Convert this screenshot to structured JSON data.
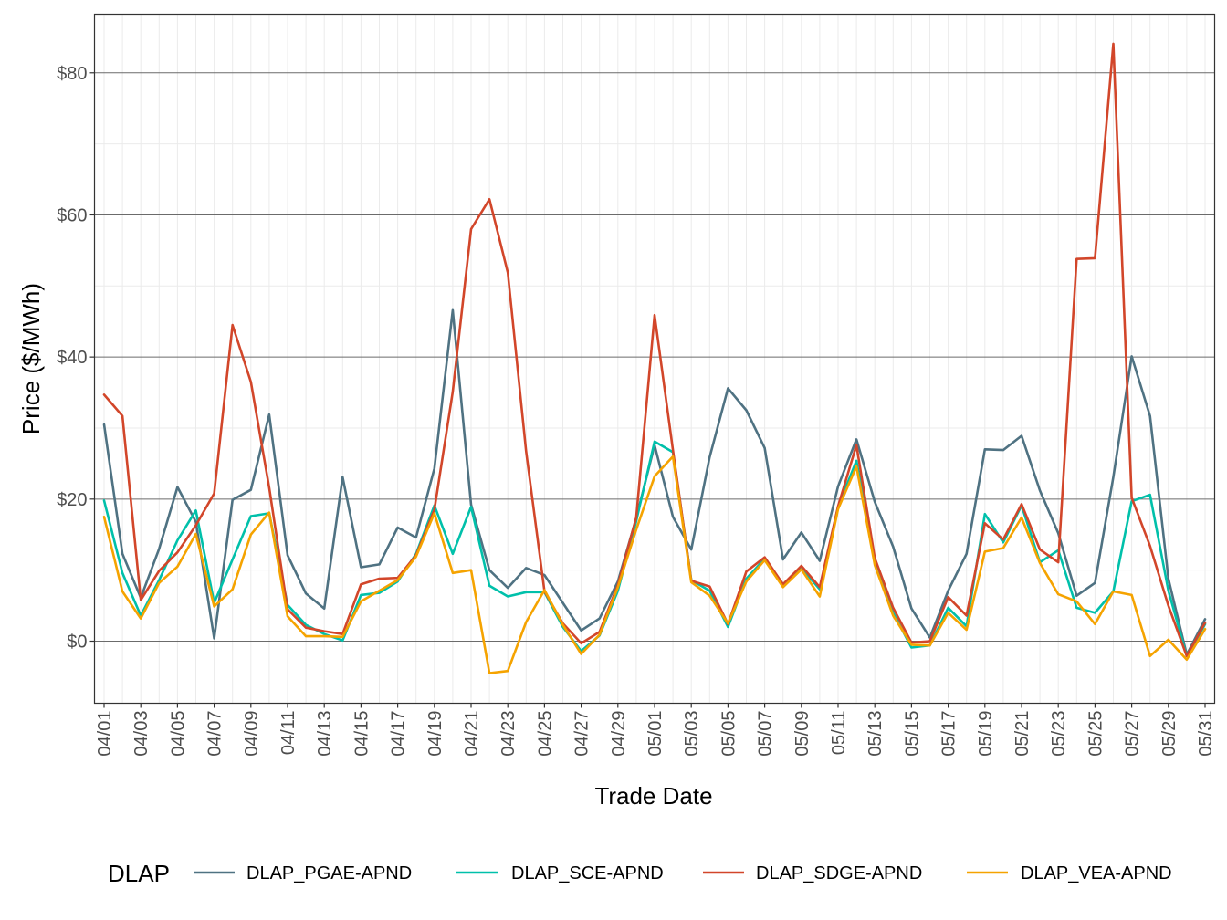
{
  "chart_data": {
    "type": "line",
    "xlabel": "Trade Date",
    "ylabel": "Price ($/MWh)",
    "ylim": [
      -9,
      88
    ],
    "y_ticks": [
      0,
      20,
      40,
      60,
      80
    ],
    "y_tick_labels": [
      "$0",
      "$20",
      "$40",
      "$60",
      "$80"
    ],
    "grid": true,
    "legend_title": "DLAP",
    "legend_position": "bottom",
    "categories": [
      "04/01",
      "04/02",
      "04/03",
      "04/04",
      "04/05",
      "04/06",
      "04/07",
      "04/08",
      "04/09",
      "04/10",
      "04/11",
      "04/12",
      "04/13",
      "04/14",
      "04/15",
      "04/16",
      "04/17",
      "04/18",
      "04/19",
      "04/20",
      "04/21",
      "04/22",
      "04/23",
      "04/24",
      "04/25",
      "04/26",
      "04/27",
      "04/28",
      "04/29",
      "04/30",
      "05/01",
      "05/02",
      "05/03",
      "05/04",
      "05/05",
      "05/06",
      "05/07",
      "05/08",
      "05/09",
      "05/10",
      "05/11",
      "05/12",
      "05/13",
      "05/14",
      "05/15",
      "05/16",
      "05/17",
      "05/18",
      "05/19",
      "05/20",
      "05/21",
      "05/22",
      "05/23",
      "05/24",
      "05/25",
      "05/26",
      "05/27",
      "05/28",
      "05/29",
      "05/30",
      "05/31"
    ],
    "x_tick_labels": [
      "04/01",
      "04/03",
      "04/05",
      "04/07",
      "04/09",
      "04/11",
      "04/13",
      "04/15",
      "04/17",
      "04/19",
      "04/21",
      "04/23",
      "04/25",
      "04/27",
      "04/29",
      "05/01",
      "05/03",
      "05/05",
      "05/07",
      "05/09",
      "05/11",
      "05/13",
      "05/15",
      "05/17",
      "05/19",
      "05/21",
      "05/23",
      "05/25",
      "05/27",
      "05/29",
      "05/31"
    ],
    "series": [
      {
        "name": "DLAP_PGAE-APND",
        "color": "#4f7282",
        "values": [
          30.5,
          12.3,
          6.1,
          13.0,
          21.7,
          16.8,
          0.4,
          19.9,
          21.3,
          31.9,
          12.1,
          6.7,
          4.6,
          23.1,
          10.4,
          10.8,
          16.0,
          14.6,
          24.3,
          46.6,
          19.2,
          10.0,
          7.5,
          10.3,
          9.3,
          5.4,
          1.5,
          3.2,
          8.4,
          17.3,
          27.6,
          17.5,
          12.9,
          25.9,
          35.6,
          32.5,
          27.2,
          11.5,
          15.3,
          11.3,
          21.8,
          28.4,
          19.6,
          13.3,
          4.6,
          0.5,
          7.1,
          12.3,
          27.0,
          26.9,
          28.9,
          21.2,
          15.2,
          6.4,
          8.2,
          23.1,
          40.1,
          31.7,
          8.8,
          -1.9,
          3.1
        ]
      },
      {
        "name": "DLAP_SCE-APND",
        "color": "#00c0aa",
        "values": [
          19.8,
          9.6,
          3.6,
          8.6,
          14.2,
          18.4,
          5.4,
          11.5,
          17.6,
          18.0,
          5.1,
          2.3,
          1.0,
          0.1,
          6.5,
          6.8,
          8.4,
          12.3,
          19.1,
          12.3,
          18.9,
          7.8,
          6.3,
          6.9,
          6.9,
          2.0,
          -1.4,
          0.8,
          7.1,
          16.9,
          28.1,
          26.6,
          8.6,
          7.1,
          2.0,
          8.8,
          11.6,
          8.0,
          10.3,
          7.3,
          18.9,
          25.4,
          11.2,
          4.0,
          -0.9,
          -0.6,
          4.7,
          2.1,
          17.9,
          13.9,
          19.1,
          11.1,
          12.8,
          4.7,
          4.0,
          7.0,
          19.7,
          20.6,
          7.1,
          -2.1,
          2.4
        ]
      },
      {
        "name": "DLAP_SDGE-APND",
        "color": "#d2462a",
        "values": [
          34.7,
          31.7,
          5.8,
          9.9,
          12.5,
          16.3,
          20.8,
          44.5,
          36.5,
          21.6,
          4.5,
          1.9,
          1.4,
          1.0,
          8.0,
          8.8,
          8.9,
          12.1,
          18.5,
          35.1,
          58.0,
          62.2,
          51.9,
          26.7,
          7.0,
          2.5,
          -0.3,
          1.3,
          7.9,
          17.4,
          45.9,
          26.9,
          8.5,
          7.7,
          2.4,
          9.8,
          11.8,
          8.0,
          10.6,
          7.6,
          19.0,
          27.6,
          11.7,
          4.7,
          -0.2,
          0.0,
          6.2,
          3.6,
          16.6,
          14.3,
          19.3,
          12.9,
          11.1,
          53.8,
          53.9,
          84.1,
          20.2,
          13.4,
          5.0,
          -2.1,
          2.6
        ]
      },
      {
        "name": "DLAP_VEA-APND",
        "color": "#f5a300",
        "values": [
          17.5,
          7.0,
          3.2,
          8.2,
          10.5,
          15.1,
          4.9,
          7.3,
          15.0,
          18.1,
          3.5,
          0.7,
          0.7,
          0.6,
          5.6,
          7.1,
          8.6,
          11.9,
          18.0,
          9.6,
          10.0,
          -4.5,
          -4.2,
          2.7,
          7.2,
          2.3,
          -1.8,
          0.9,
          7.6,
          15.7,
          23.2,
          26.0,
          8.3,
          6.4,
          2.5,
          8.4,
          11.4,
          7.6,
          10.1,
          6.3,
          18.6,
          24.6,
          10.7,
          3.6,
          -0.5,
          -0.6,
          4.0,
          1.6,
          12.6,
          13.1,
          17.4,
          11.0,
          6.6,
          5.6,
          2.4,
          7.0,
          6.5,
          -2.1,
          0.2,
          -2.6,
          1.7
        ]
      }
    ]
  }
}
